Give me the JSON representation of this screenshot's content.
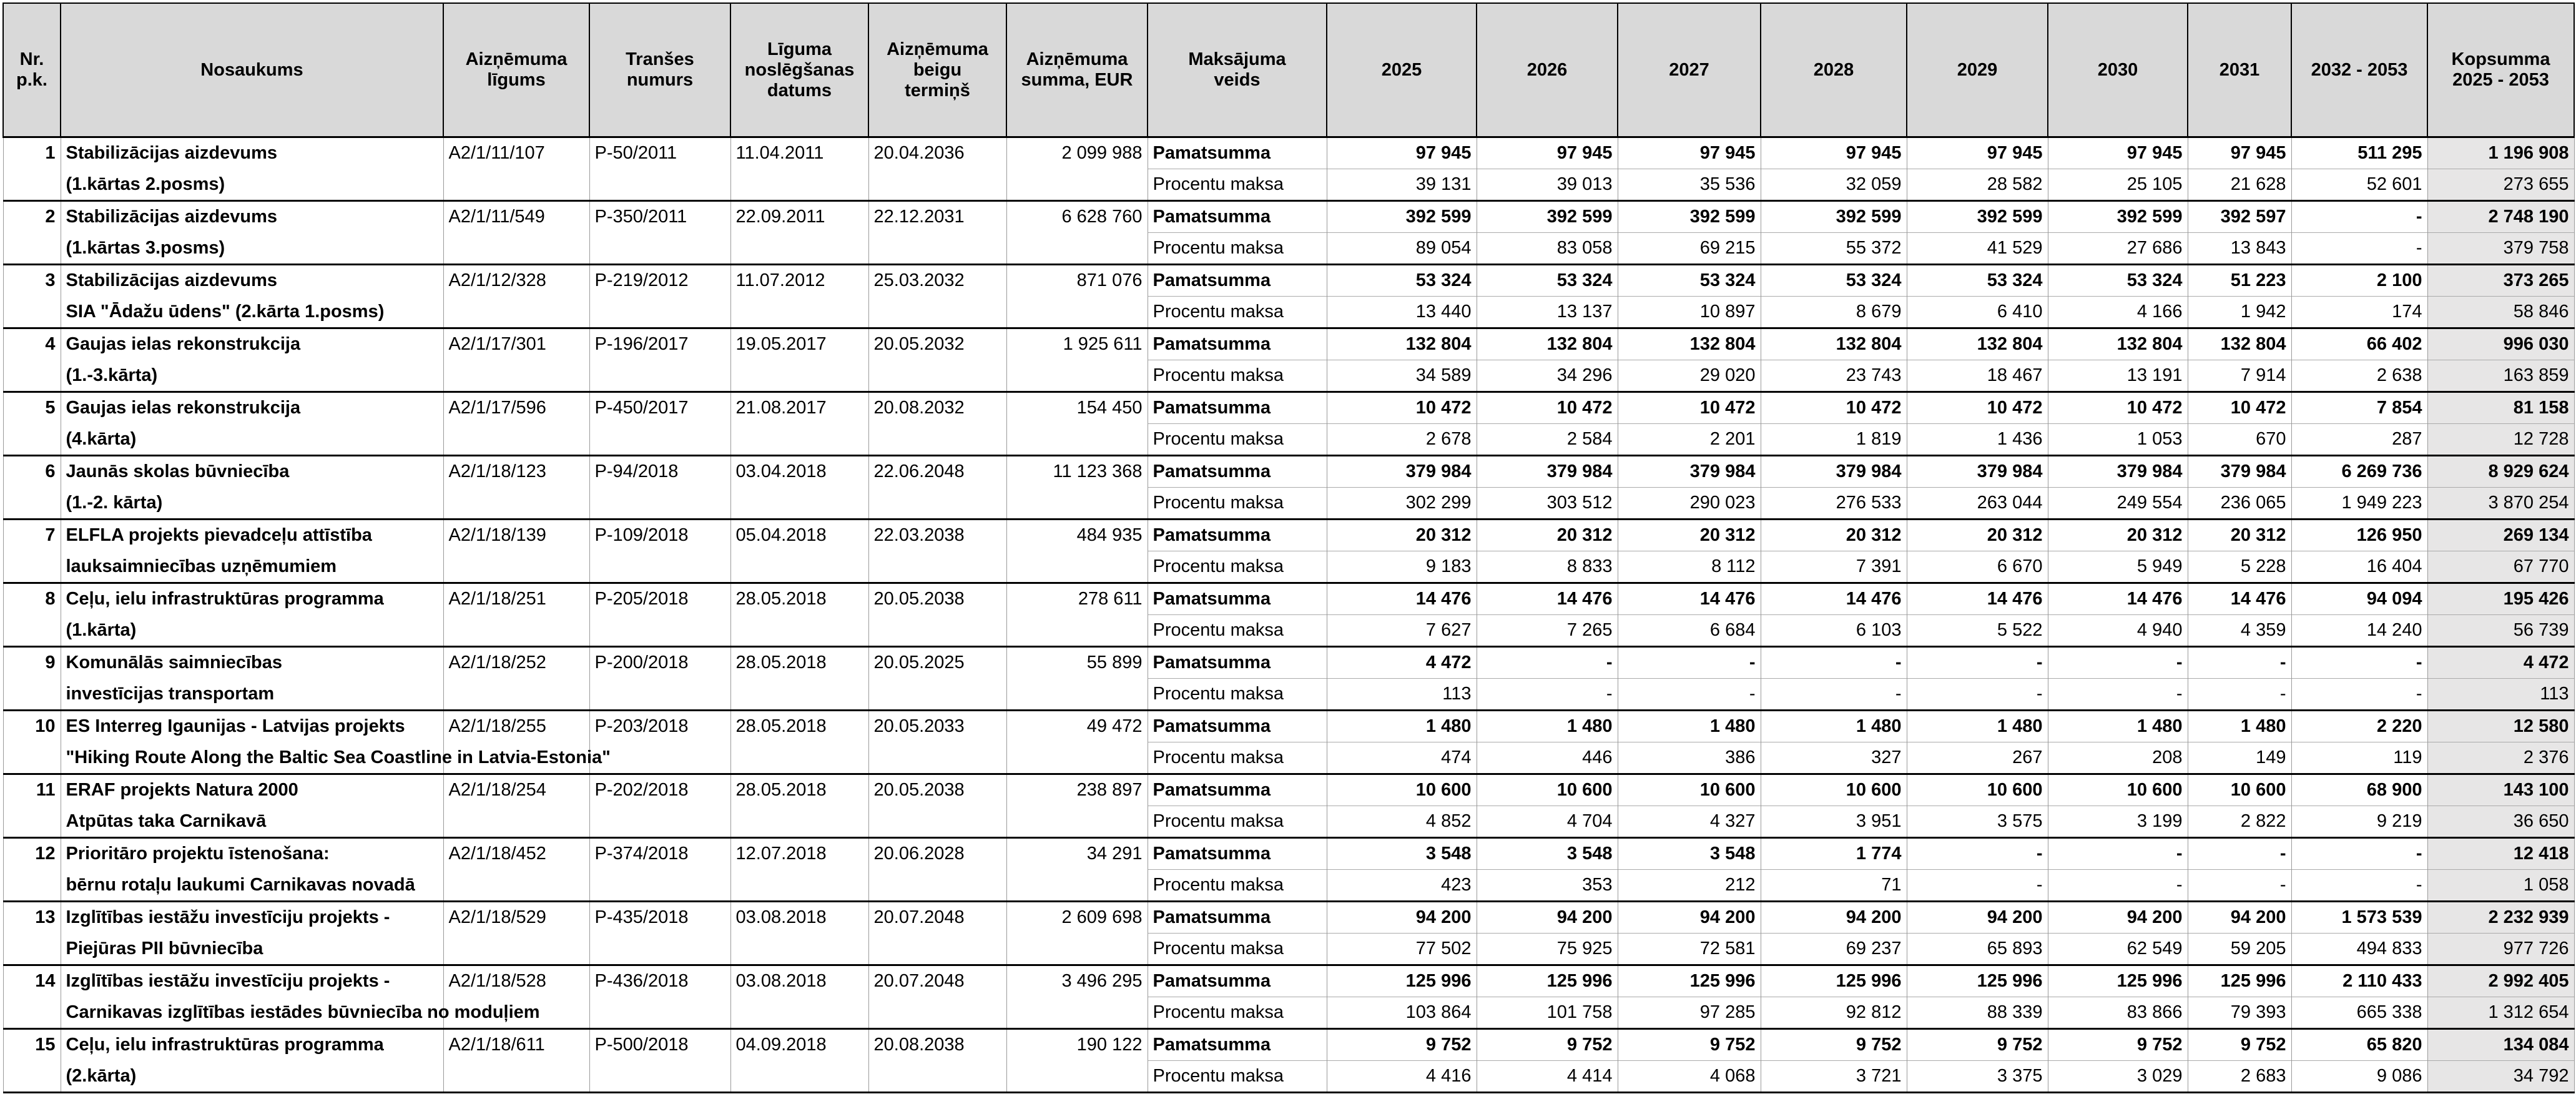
{
  "table": {
    "headers": [
      "Nr.\np.k.",
      "Nosaukums",
      "Aizņēmuma\nlīgums",
      "Tranšes\nnumurs",
      "Līguma\nnoslēgšanas\ndatums",
      "Aizņēmuma\nbeigu\ntermiņš",
      "Aizņēmuma\nsumma, EUR",
      "Maksājuma\nveids",
      "2025",
      "2026",
      "2027",
      "2028",
      "2029",
      "2030",
      "2031",
      "2032 - 2053",
      "Kopsumma\n2025 - 2053"
    ],
    "loans": [
      {
        "nr": "1",
        "name": [
          "Stabilizācijas aizdevums",
          "(1.kārtas 2.posms)"
        ],
        "contract": "A2/1/11/107",
        "tranche": "P-50/2011",
        "signed": "11.04.2011",
        "end": "20.04.2036",
        "amount": "2 099 988",
        "principal": {
          "type": "Pamatsumma",
          "values": [
            "97 945",
            "97 945",
            "97 945",
            "97 945",
            "97 945",
            "97 945",
            "97 945",
            "511 295",
            "1 196 908"
          ]
        },
        "interest": {
          "type": "Procentu maksa",
          "values": [
            "39 131",
            "39 013",
            "35 536",
            "32 059",
            "28 582",
            "25 105",
            "21 628",
            "52 601",
            "273 655"
          ]
        }
      },
      {
        "nr": "2",
        "name": [
          "Stabilizācijas aizdevums",
          "(1.kārtas 3.posms)"
        ],
        "contract": "A2/1/11/549",
        "tranche": "P-350/2011",
        "signed": "22.09.2011",
        "end": "22.12.2031",
        "amount": "6 628 760",
        "principal": {
          "type": "Pamatsumma",
          "values": [
            "392 599",
            "392 599",
            "392 599",
            "392 599",
            "392 599",
            "392 599",
            "392 597",
            "-",
            "2 748 190"
          ]
        },
        "interest": {
          "type": "Procentu maksa",
          "values": [
            "89 054",
            "83 058",
            "69 215",
            "55 372",
            "41 529",
            "27 686",
            "13 843",
            "-",
            "379 758"
          ]
        }
      },
      {
        "nr": "3",
        "name": [
          "Stabilizācijas aizdevums",
          "SIA \"Ādažu ūdens\" (2.kārta 1.posms)"
        ],
        "contract": "A2/1/12/328",
        "tranche": "P-219/2012",
        "signed": "11.07.2012",
        "end": "25.03.2032",
        "amount": "871 076",
        "principal": {
          "type": "Pamatsumma",
          "values": [
            "53 324",
            "53 324",
            "53 324",
            "53 324",
            "53 324",
            "53 324",
            "51 223",
            "2 100",
            "373 265"
          ]
        },
        "interest": {
          "type": "Procentu maksa",
          "values": [
            "13 440",
            "13 137",
            "10 897",
            "8 679",
            "6 410",
            "4 166",
            "1 942",
            "174",
            "58 846"
          ]
        }
      },
      {
        "nr": "4",
        "name": [
          "Gaujas ielas rekonstrukcija",
          "(1.-3.kārta)"
        ],
        "contract": "A2/1/17/301",
        "tranche": "P-196/2017",
        "signed": "19.05.2017",
        "end": "20.05.2032",
        "amount": "1 925 611",
        "principal": {
          "type": "Pamatsumma",
          "values": [
            "132 804",
            "132 804",
            "132 804",
            "132 804",
            "132 804",
            "132 804",
            "132 804",
            "66 402",
            "996 030"
          ]
        },
        "interest": {
          "type": "Procentu maksa",
          "values": [
            "34 589",
            "34 296",
            "29 020",
            "23 743",
            "18 467",
            "13 191",
            "7 914",
            "2 638",
            "163 859"
          ]
        }
      },
      {
        "nr": "5",
        "name": [
          "Gaujas ielas rekonstrukcija",
          "(4.kārta)"
        ],
        "contract": "A2/1/17/596",
        "tranche": "P-450/2017",
        "signed": "21.08.2017",
        "end": "20.08.2032",
        "amount": "154 450",
        "principal": {
          "type": "Pamatsumma",
          "values": [
            "10 472",
            "10 472",
            "10 472",
            "10 472",
            "10 472",
            "10 472",
            "10 472",
            "7 854",
            "81 158"
          ]
        },
        "interest": {
          "type": "Procentu maksa",
          "values": [
            "2 678",
            "2 584",
            "2 201",
            "1 819",
            "1 436",
            "1 053",
            "670",
            "287",
            "12 728"
          ]
        }
      },
      {
        "nr": "6",
        "name": [
          "Jaunās skolas būvniecība",
          "(1.-2. kārta)"
        ],
        "contract": "A2/1/18/123",
        "tranche": "P-94/2018",
        "signed": "03.04.2018",
        "end": "22.06.2048",
        "amount": "11 123 368",
        "principal": {
          "type": "Pamatsumma",
          "values": [
            "379 984",
            "379 984",
            "379 984",
            "379 984",
            "379 984",
            "379 984",
            "379 984",
            "6 269 736",
            "8 929 624"
          ]
        },
        "interest": {
          "type": "Procentu maksa",
          "values": [
            "302 299",
            "303 512",
            "290 023",
            "276 533",
            "263 044",
            "249 554",
            "236 065",
            "1 949 223",
            "3 870 254"
          ]
        }
      },
      {
        "nr": "7",
        "name": [
          "ELFLA projekts pievadceļu attīstība",
          "lauksaimniecības uzņēmumiem"
        ],
        "contract": "A2/1/18/139",
        "tranche": "P-109/2018",
        "signed": "05.04.2018",
        "end": "22.03.2038",
        "amount": "484 935",
        "principal": {
          "type": "Pamatsumma",
          "values": [
            "20 312",
            "20 312",
            "20 312",
            "20 312",
            "20 312",
            "20 312",
            "20 312",
            "126 950",
            "269 134"
          ]
        },
        "interest": {
          "type": "Procentu maksa",
          "values": [
            "9 183",
            "8 833",
            "8 112",
            "7 391",
            "6 670",
            "5 949",
            "5 228",
            "16 404",
            "67 770"
          ]
        }
      },
      {
        "nr": "8",
        "name": [
          "Ceļu, ielu infrastruktūras programma",
          "(1.kārta)"
        ],
        "contract": "A2/1/18/251",
        "tranche": "P-205/2018",
        "signed": "28.05.2018",
        "end": "20.05.2038",
        "amount": "278 611",
        "principal": {
          "type": "Pamatsumma",
          "values": [
            "14 476",
            "14 476",
            "14 476",
            "14 476",
            "14 476",
            "14 476",
            "14 476",
            "94 094",
            "195 426"
          ]
        },
        "interest": {
          "type": "Procentu maksa",
          "values": [
            "7 627",
            "7 265",
            "6 684",
            "6 103",
            "5 522",
            "4 940",
            "4 359",
            "14 240",
            "56 739"
          ]
        }
      },
      {
        "nr": "9",
        "name": [
          "Komunālās saimniecības",
          "investīcijas transportam"
        ],
        "contract": "A2/1/18/252",
        "tranche": "P-200/2018",
        "signed": "28.05.2018",
        "end": "20.05.2025",
        "amount": "55 899",
        "principal": {
          "type": "Pamatsumma",
          "values": [
            "4 472",
            "-",
            "-",
            "-",
            "-",
            "-",
            "-",
            "-",
            "4 472"
          ]
        },
        "interest": {
          "type": "Procentu maksa",
          "values": [
            "113",
            "-",
            "-",
            "-",
            "-",
            "-",
            "-",
            "-",
            "113"
          ]
        }
      },
      {
        "nr": "10",
        "name": [
          "ES Interreg Igaunijas - Latvijas projekts",
          "\"Hiking Route Along the Baltic Sea Coastline in Latvia-Estonia\""
        ],
        "contract": "A2/1/18/255",
        "tranche": "P-203/2018",
        "signed": "28.05.2018",
        "end": "20.05.2033",
        "amount": "49 472",
        "principal": {
          "type": "Pamatsumma",
          "values": [
            "1 480",
            "1 480",
            "1 480",
            "1 480",
            "1 480",
            "1 480",
            "1 480",
            "2 220",
            "12 580"
          ]
        },
        "interest": {
          "type": "Procentu maksa",
          "values": [
            "474",
            "446",
            "386",
            "327",
            "267",
            "208",
            "149",
            "119",
            "2 376"
          ]
        }
      },
      {
        "nr": "11",
        "name": [
          "ERAF projekts Natura 2000",
          "Atpūtas taka Carnikavā"
        ],
        "contract": "A2/1/18/254",
        "tranche": "P-202/2018",
        "signed": "28.05.2018",
        "end": "20.05.2038",
        "amount": "238 897",
        "principal": {
          "type": "Pamatsumma",
          "values": [
            "10 600",
            "10 600",
            "10 600",
            "10 600",
            "10 600",
            "10 600",
            "10 600",
            "68 900",
            "143 100"
          ]
        },
        "interest": {
          "type": "Procentu maksa",
          "values": [
            "4 852",
            "4 704",
            "4 327",
            "3 951",
            "3 575",
            "3 199",
            "2 822",
            "9 219",
            "36 650"
          ]
        }
      },
      {
        "nr": "12",
        "name": [
          "Prioritāro projektu īstenošana:",
          "bērnu rotaļu laukumi Carnikavas novadā"
        ],
        "contract": "A2/1/18/452",
        "tranche": "P-374/2018",
        "signed": "12.07.2018",
        "end": "20.06.2028",
        "amount": "34 291",
        "principal": {
          "type": "Pamatsumma",
          "values": [
            "3 548",
            "3 548",
            "3 548",
            "1 774",
            "-",
            "-",
            "-",
            "-",
            "12 418"
          ]
        },
        "interest": {
          "type": "Procentu maksa",
          "values": [
            "423",
            "353",
            "212",
            "71",
            "-",
            "-",
            "-",
            "-",
            "1 058"
          ]
        }
      },
      {
        "nr": "13",
        "name": [
          "Izglītības iestāžu investīciju projekts -",
          "Piejūras PII būvniecība"
        ],
        "contract": "A2/1/18/529",
        "tranche": "P-435/2018",
        "signed": "03.08.2018",
        "end": "20.07.2048",
        "amount": "2 609 698",
        "principal": {
          "type": "Pamatsumma",
          "values": [
            "94 200",
            "94 200",
            "94 200",
            "94 200",
            "94 200",
            "94 200",
            "94 200",
            "1 573 539",
            "2 232 939"
          ]
        },
        "interest": {
          "type": "Procentu maksa",
          "values": [
            "77 502",
            "75 925",
            "72 581",
            "69 237",
            "65 893",
            "62 549",
            "59 205",
            "494 833",
            "977 726"
          ]
        }
      },
      {
        "nr": "14",
        "name": [
          "Izglītības iestāžu investīciju projekts -",
          "Carnikavas izglītības iestādes būvniecība no moduļiem"
        ],
        "contract": "A2/1/18/528",
        "tranche": "P-436/2018",
        "signed": "03.08.2018",
        "end": "20.07.2048",
        "amount": "3 496 295",
        "principal": {
          "type": "Pamatsumma",
          "values": [
            "125 996",
            "125 996",
            "125 996",
            "125 996",
            "125 996",
            "125 996",
            "125 996",
            "2 110 433",
            "2 992 405"
          ]
        },
        "interest": {
          "type": "Procentu maksa",
          "values": [
            "103 864",
            "101 758",
            "97 285",
            "92 812",
            "88 339",
            "83 866",
            "79 393",
            "665 338",
            "1 312 654"
          ]
        }
      },
      {
        "nr": "15",
        "name": [
          "Ceļu, ielu infrastruktūras programma",
          "(2.kārta)"
        ],
        "contract": "A2/1/18/611",
        "tranche": "P-500/2018",
        "signed": "04.09.2018",
        "end": "20.08.2038",
        "amount": "190 122",
        "principal": {
          "type": "Pamatsumma",
          "values": [
            "9 752",
            "9 752",
            "9 752",
            "9 752",
            "9 752",
            "9 752",
            "9 752",
            "65 820",
            "134 084"
          ]
        },
        "interest": {
          "type": "Procentu maksa",
          "values": [
            "4 416",
            "4 414",
            "4 068",
            "3 721",
            "3 375",
            "3 029",
            "2 683",
            "9 086",
            "34 792"
          ]
        }
      }
    ]
  }
}
